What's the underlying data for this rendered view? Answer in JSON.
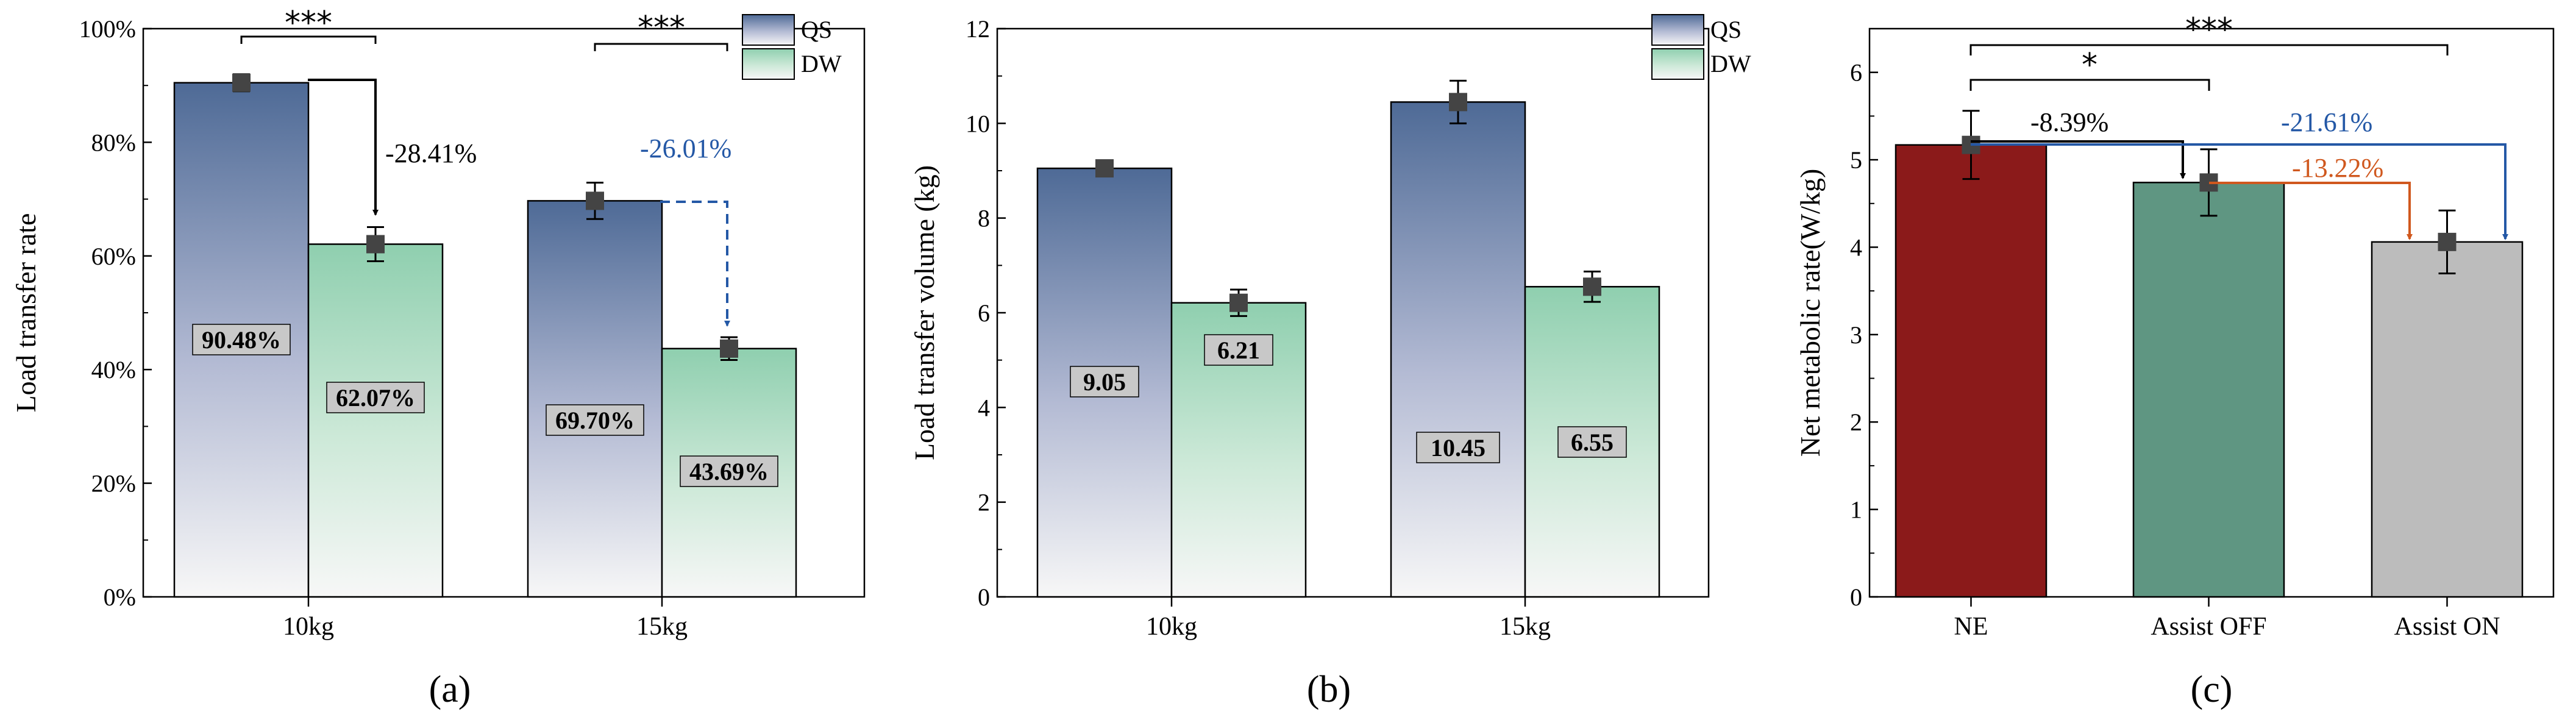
{
  "colors": {
    "qs": "#4e6a96",
    "dw": "#8fcfaf",
    "ne": "#8b1a1a",
    "off": "#5f9682",
    "on": "#bcbcbc",
    "blue": "#2458a6",
    "orange": "#d0581e"
  },
  "chart_data": [
    {
      "panel": "(a)",
      "type": "bar",
      "ylabel": "Load transfer rate",
      "ylim": [
        0,
        100
      ],
      "yticks": [
        0,
        20,
        40,
        60,
        80,
        100
      ],
      "ytick_labels": [
        "0%",
        "20%",
        "40%",
        "60%",
        "80%",
        "100%"
      ],
      "categories": [
        "10kg",
        "15kg"
      ],
      "series": [
        {
          "name": "QS",
          "values": [
            90.48,
            69.7
          ],
          "errors": [
            1.5,
            3.2
          ],
          "labels": [
            "90.48%",
            "69.70%"
          ]
        },
        {
          "name": "DW",
          "values": [
            62.07,
            43.69
          ],
          "errors": [
            3.0,
            2.0
          ],
          "labels": [
            "62.07%",
            "43.69%"
          ]
        }
      ],
      "legend": [
        "QS",
        "DW"
      ],
      "legend_position": "top-right",
      "significance": [
        {
          "category": "10kg",
          "label": "***"
        },
        {
          "category": "15kg",
          "label": "***"
        }
      ],
      "changes": [
        {
          "category": "10kg",
          "label": "-28.41%",
          "color": "black",
          "dashed": false
        },
        {
          "category": "15kg",
          "label": "-26.01%",
          "color": "blue",
          "dashed": true
        }
      ],
      "caption": "(a)"
    },
    {
      "panel": "(b)",
      "type": "bar",
      "ylabel": "Load transfer volume (kg)",
      "ylim": [
        0,
        12
      ],
      "yticks": [
        0,
        2,
        4,
        6,
        8,
        10,
        12
      ],
      "ytick_labels": [
        "0",
        "2",
        "4",
        "6",
        "8",
        "10",
        "12"
      ],
      "categories": [
        "10kg",
        "15kg"
      ],
      "series": [
        {
          "name": "QS",
          "values": [
            9.05,
            10.45
          ],
          "errors": [
            0.15,
            0.45
          ],
          "labels": [
            "9.05",
            "10.45"
          ]
        },
        {
          "name": "DW",
          "values": [
            6.21,
            6.55
          ],
          "errors": [
            0.28,
            0.32
          ],
          "labels": [
            "6.21",
            "6.55"
          ]
        }
      ],
      "legend": [
        "QS",
        "DW"
      ],
      "legend_position": "top-right",
      "caption": "(b)"
    },
    {
      "panel": "(c)",
      "type": "bar",
      "ylabel": "Net metabolic rate(W/kg)",
      "ylim": [
        0,
        6.5
      ],
      "yticks": [
        0,
        1,
        2,
        3,
        4,
        5,
        6
      ],
      "ytick_labels": [
        "0",
        "1",
        "2",
        "3",
        "4",
        "5",
        "6"
      ],
      "categories": [
        "NE",
        "Assist OFF",
        "Assist ON"
      ],
      "values": [
        5.17,
        4.74,
        4.06
      ],
      "errors": [
        0.39,
        0.38,
        0.36
      ],
      "significance": [
        {
          "from": "NE",
          "to": "Assist OFF",
          "label": "*"
        },
        {
          "from": "NE",
          "to": "Assist ON",
          "label": "***"
        }
      ],
      "changes": [
        {
          "from": "NE",
          "to": "Assist OFF",
          "label": "-8.39%",
          "color": "black"
        },
        {
          "from": "Assist OFF",
          "to": "Assist ON",
          "label": "-13.22%",
          "color": "orange"
        },
        {
          "from": "NE",
          "to": "Assist ON",
          "label": "-21.61%",
          "color": "blue"
        }
      ],
      "caption": "(c)"
    }
  ]
}
